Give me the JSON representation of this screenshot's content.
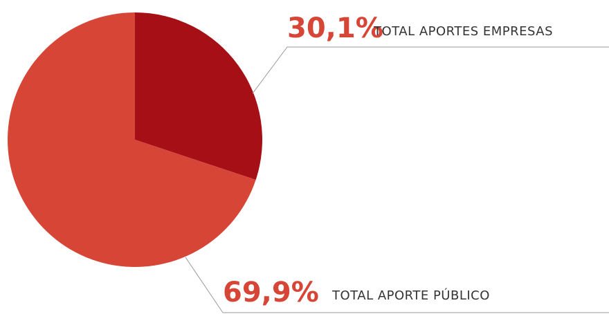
{
  "chart_data": {
    "type": "pie",
    "categories": [
      "TOTAL APORTES EMPRESAS",
      "TOTAL APORTE PÚBLICO"
    ],
    "values": [
      30.1,
      69.9
    ],
    "value_labels": [
      "30,1%",
      "69,9%"
    ],
    "colors": [
      "#a50f15",
      "#d64535"
    ]
  }
}
